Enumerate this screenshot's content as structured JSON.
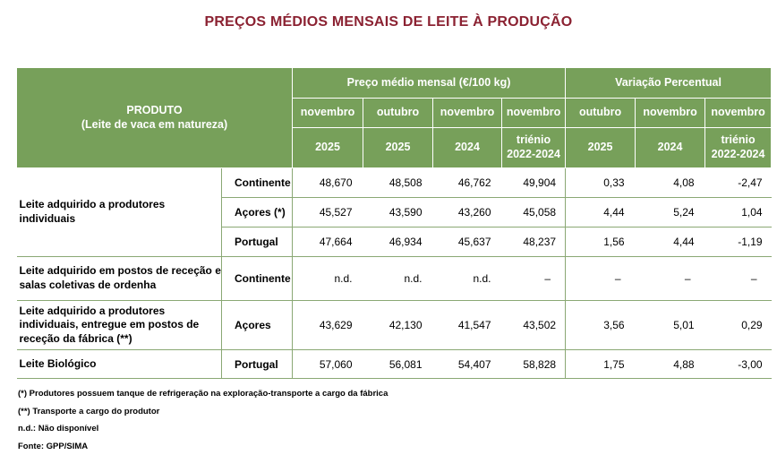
{
  "title": "PREÇOS MÉDIOS MENSAIS DE LEITE À PRODUÇÃO",
  "header": {
    "produto": "PRODUTO",
    "produto_sub": "(Leite de vaca em natureza)",
    "preco_group": "Preço médio mensal (€/100 kg)",
    "variacao_group": "Variação Percentual",
    "months": [
      "novembro",
      "outubro",
      "novembro",
      "novembro",
      "outubro",
      "novembro",
      "novembro"
    ],
    "years": [
      "2025",
      "2025",
      "2024",
      "triénio 2022-2024",
      "2025",
      "2024",
      "triénio 2022-2024"
    ]
  },
  "groups": [
    {
      "label": "Leite adquirido a produtores individuais",
      "rows": [
        {
          "region": "Continente",
          "values": [
            "48,670",
            "48,508",
            "46,762",
            "49,904",
            "0,33",
            "4,08",
            "-2,47"
          ]
        },
        {
          "region": "Açores (*)",
          "values": [
            "45,527",
            "43,590",
            "43,260",
            "45,058",
            "4,44",
            "5,24",
            "1,04"
          ]
        },
        {
          "region": "Portugal",
          "values": [
            "47,664",
            "46,934",
            "45,637",
            "48,237",
            "1,56",
            "4,44",
            "-1,19"
          ]
        }
      ]
    },
    {
      "label": "Leite adquirido em postos de receção e salas coletivas de ordenha",
      "rows": [
        {
          "region": "Continente",
          "values": [
            "n.d.",
            "n.d.",
            "n.d.",
            "–",
            "–",
            "–",
            "–"
          ]
        }
      ]
    },
    {
      "label": "Leite adquirido a produtores individuais, entregue em postos de receção da fábrica (**)",
      "rows": [
        {
          "region": "Açores",
          "values": [
            "43,629",
            "42,130",
            "41,547",
            "43,502",
            "3,56",
            "5,01",
            "0,29"
          ]
        }
      ]
    },
    {
      "label": "Leite Biológico",
      "rows": [
        {
          "region": "Portugal",
          "values": [
            "57,060",
            "56,081",
            "54,407",
            "58,828",
            "1,75",
            "4,88",
            "-3,00"
          ]
        }
      ]
    }
  ],
  "notes": [
    "(*)  Produtores possuem tanque de refrigeração na exploração-transporte a cargo da fábrica",
    "(**) Transporte a cargo do produtor",
    "n.d.: Não disponível",
    "Fonte: GPP/SIMA"
  ]
}
